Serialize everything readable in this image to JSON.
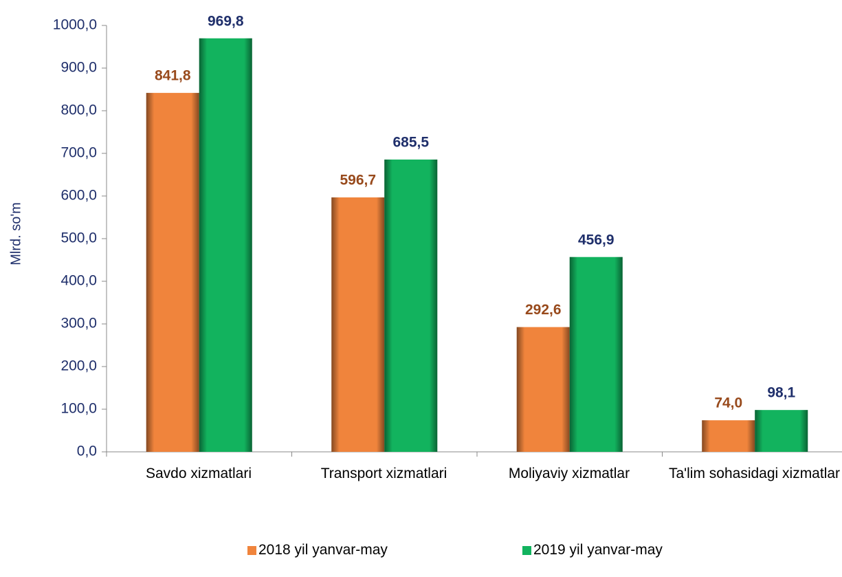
{
  "chart_data": {
    "type": "bar",
    "y_label": "Mlrd. so'm",
    "categories": [
      "Savdo xizmatlari",
      "Transport xizmatlari",
      "Moliyaviy xizmatlar",
      "Ta'lim sohasidagi xizmatlar"
    ],
    "series": [
      {
        "name": "2018 yil yanvar-may",
        "color": "#f0843c",
        "label_color": "#984a1c",
        "values": [
          841.8,
          596.7,
          292.6,
          74.0
        ],
        "value_labels": [
          "841,8",
          "596,7",
          "292,6",
          "74,0"
        ]
      },
      {
        "name": "2019 yil yanvar-may",
        "color": "#12b35e",
        "label_color": "#1f2f6b",
        "values": [
          969.8,
          685.5,
          456.9,
          98.1
        ],
        "value_labels": [
          "969,8",
          "685,5",
          "456,9",
          "98,1"
        ]
      }
    ],
    "ylim": [
      0,
      1000
    ],
    "yticks": [
      {
        "value": 0,
        "label": "0,0"
      },
      {
        "value": 100,
        "label": "100,0"
      },
      {
        "value": 200,
        "label": "200,0"
      },
      {
        "value": 300,
        "label": "300,0"
      },
      {
        "value": 400,
        "label": "400,0"
      },
      {
        "value": 500,
        "label": "500,0"
      },
      {
        "value": 600,
        "label": "600,0"
      },
      {
        "value": 700,
        "label": "700,0"
      },
      {
        "value": 800,
        "label": "800,0"
      },
      {
        "value": 900,
        "label": "900,0"
      },
      {
        "value": 1000,
        "label": "1000,0"
      }
    ],
    "grid": false
  }
}
